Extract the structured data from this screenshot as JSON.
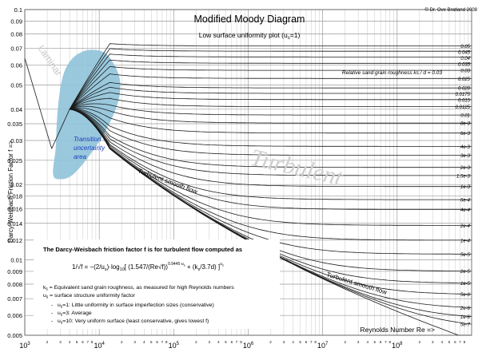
{
  "header": {
    "title": "Modified Moody Diagram",
    "subtitle": "Low surface uniformity plot (u",
    "subtitle_sub": "s",
    "subtitle_tail": "=1)",
    "copyright": "© Dr. Ove Bratland 2008"
  },
  "chart_data": {
    "type": "line",
    "x_scale": "log",
    "y_scale": "log",
    "xlim": [
      1000,
      1000000000
    ],
    "ylim": [
      0.005,
      0.1
    ],
    "xlabel": "Reynolds Number Re =>",
    "ylabel": "Darcy-Weisbach Friction Factor f =>",
    "x_major_ticks": [
      1000,
      10000,
      100000,
      1000000,
      10000000,
      100000000
    ],
    "x_major_labels": [
      {
        "base": "10",
        "exp": "3"
      },
      {
        "base": "10",
        "exp": "4"
      },
      {
        "base": "10",
        "exp": "5"
      },
      {
        "base": "10",
        "exp": "6"
      },
      {
        "base": "10",
        "exp": "7"
      },
      {
        "base": "10",
        "exp": "8"
      }
    ],
    "x_minor_labels": [
      "2",
      "3",
      "4",
      "5",
      "6",
      "7",
      "8"
    ],
    "y_ticks": [
      0.1,
      0.09,
      0.08,
      0.07,
      0.06,
      0.05,
      0.04,
      0.035,
      0.03,
      0.025,
      0.02,
      0.018,
      0.016,
      0.014,
      0.012,
      0.01,
      0.009,
      0.008,
      0.007,
      0.006,
      0.005
    ],
    "y_tick_labels": [
      "0.1",
      "0.09",
      "0.08",
      "0.07",
      "0.06",
      "0.05",
      "0.04",
      "0.035",
      "0.03",
      "0.025",
      "0.02",
      "0.018",
      "0.016",
      "0.014",
      "0.012",
      "0.01",
      "0.009",
      "0.008",
      "0.007",
      "0.006",
      "0.005"
    ],
    "grid": true,
    "roughness_labels": [
      "0.05",
      "0.045",
      "0.04",
      "0.035",
      "0.03",
      "0.025",
      "0.020",
      "0.0175",
      "0.015",
      "0.0125",
      "0.01",
      "8e-3",
      "6e-3",
      "4e-3",
      "3e-3",
      "2e-3",
      "1.5e-3",
      "1e-3",
      "6e-4",
      "4e-4",
      "2e-4",
      "1e-4",
      "5e-5",
      "2e-5",
      "1e-5",
      "5e-6",
      "2e-6",
      "1e-6",
      "5e-7"
    ],
    "roughness_values": [
      0.05,
      0.045,
      0.04,
      0.035,
      0.03,
      0.025,
      0.02,
      0.0175,
      0.015,
      0.0125,
      0.01,
      0.008,
      0.006,
      0.004,
      0.003,
      0.002,
      0.0015,
      0.001,
      0.0006,
      0.0004,
      0.0002,
      0.0001,
      5e-05,
      2e-05,
      1e-05,
      5e-06,
      2e-06,
      1e-06,
      5e-07
    ],
    "us": 1,
    "laminar_range": [
      1000,
      2300
    ],
    "transition_point": {
      "re": 4000,
      "f": 0.04
    },
    "colors": {
      "transition_area": "#8fc3d9",
      "annotation_blue": "#1a3fc0",
      "curve": "#1a1a1a"
    },
    "annotations": {
      "laminar": "Laminar",
      "turbulent": "Turbulent",
      "transition_line1": "Transition",
      "transition_line2": "uncertainty",
      "transition_line3": "area",
      "smooth_flow_1": "Turbulent smooth flow",
      "smooth_flow_2": "Turbulent smooth flow",
      "roughness_caption": "Relative sand grain roughness ks / d = 0.03"
    }
  },
  "formula_box": {
    "heading": "The Darcy-Weisbach friction factor f is for turbulent flow computed as",
    "lhs": "1/√f = ",
    "rhs_prefix": "−(2/u",
    "rhs_prefix_sub": "s",
    "rhs_log": ")·log",
    "rhs_log_sub": "10",
    "rhs_body": "[ (1.547/(Re√f))",
    "rhs_body_exp": "0.9445·u",
    "rhs_body_exp_sub": "s",
    "rhs_plus": " + (k",
    "rhs_plus_sub": "s",
    "rhs_plus_tail": "/3.7d)",
    "rhs_close": " ]",
    "rhs_close_exp": "u",
    "rhs_close_exp_sub": "s",
    "ks_sym": "k",
    "ks_sub": "s",
    "ks_def": " = Equivalent sand grain roughness, as measured for high Reynolds numbers",
    "us_sym": "u",
    "us_sub": "s",
    "us_def": " = surface structure uniformity factor",
    "bullets": [
      {
        "sym": "u",
        "sub": "s",
        "text": "=1: Little uniformity in surface imperfection sizes (conservative)"
      },
      {
        "sym": "u",
        "sub": "s",
        "text": "=3: Average"
      },
      {
        "sym": "u",
        "sub": "s",
        "text": "=10: Very uniform surface (least conservative, gives lowest  f)"
      }
    ]
  }
}
